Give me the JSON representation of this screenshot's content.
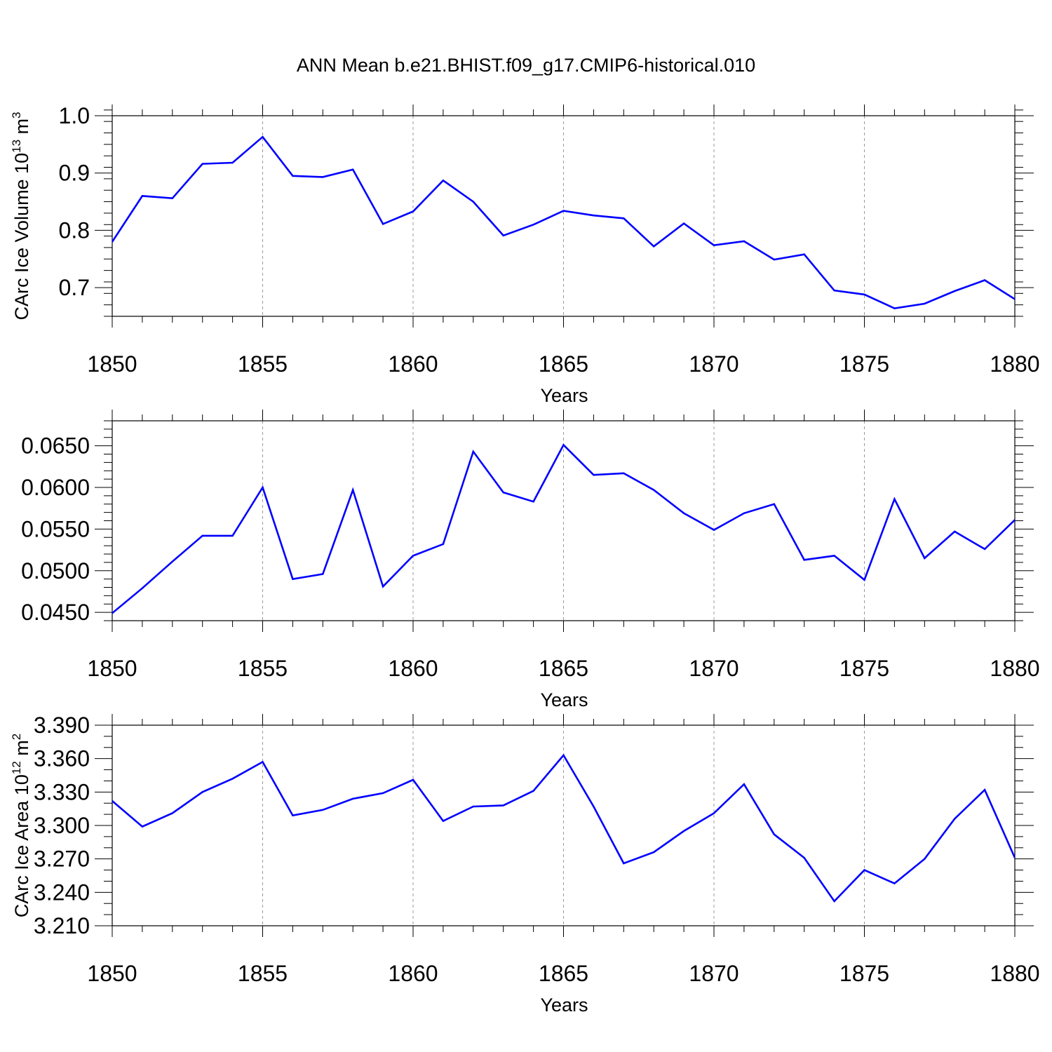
{
  "figure": {
    "title": "ANN Mean b.e21.BHIST.f09_g17.CMIP6-historical.010",
    "line_color": "#0000ff",
    "grid_color": "#999999"
  },
  "chart_data": [
    {
      "type": "line",
      "title": "ANN Mean b.e21.BHIST.f09_g17.CMIP6-historical.010",
      "xlabel": "Years",
      "ylabel": "CArc Ice Volume 10",
      "ylabel_sup": "13",
      "ylabel_unit": " m",
      "ylabel_unit_sup": "3",
      "xlim": [
        1850,
        1880
      ],
      "ylim": [
        0.65,
        1.0
      ],
      "xticks": [
        1850,
        1855,
        1860,
        1865,
        1870,
        1875,
        1880
      ],
      "xtick_labels": [
        "1850",
        "1855",
        "1860",
        "1865",
        "1870",
        "1875",
        "1880"
      ],
      "yticks": [
        0.7,
        0.8,
        0.9,
        1.0
      ],
      "ytick_labels": [
        "0.7",
        "0.8",
        "0.9",
        "1.0"
      ],
      "y_minor_step": 0.02,
      "grid": "x-dashed",
      "x": [
        1850,
        1851,
        1852,
        1853,
        1854,
        1855,
        1856,
        1857,
        1858,
        1859,
        1860,
        1861,
        1862,
        1863,
        1864,
        1865,
        1866,
        1867,
        1868,
        1869,
        1870,
        1871,
        1872,
        1873,
        1874,
        1875,
        1876,
        1877,
        1878,
        1879,
        1880
      ],
      "values": [
        0.78,
        0.86,
        0.856,
        0.916,
        0.918,
        0.963,
        0.895,
        0.893,
        0.906,
        0.811,
        0.833,
        0.887,
        0.85,
        0.791,
        0.81,
        0.834,
        0.826,
        0.821,
        0.772,
        0.812,
        0.774,
        0.781,
        0.749,
        0.758,
        0.695,
        0.688,
        0.664,
        0.672,
        0.694,
        0.713,
        0.68
      ]
    },
    {
      "type": "line",
      "xlabel": "Years",
      "ylabel": "",
      "xlim": [
        1850,
        1880
      ],
      "ylim": [
        0.044,
        0.068
      ],
      "xticks": [
        1850,
        1855,
        1860,
        1865,
        1870,
        1875,
        1880
      ],
      "xtick_labels": [
        "1850",
        "1855",
        "1860",
        "1865",
        "1870",
        "1875",
        "1880"
      ],
      "yticks": [
        0.045,
        0.05,
        0.055,
        0.06,
        0.065
      ],
      "ytick_labels": [
        "0.0450",
        "0.0500",
        "0.0550",
        "0.0600",
        "0.0650"
      ],
      "y_minor_step": 0.001,
      "grid": "x-dashed",
      "x": [
        1850,
        1851,
        1852,
        1853,
        1854,
        1855,
        1856,
        1857,
        1858,
        1859,
        1860,
        1861,
        1862,
        1863,
        1864,
        1865,
        1866,
        1867,
        1868,
        1869,
        1870,
        1871,
        1872,
        1873,
        1874,
        1875,
        1876,
        1877,
        1878,
        1879,
        1880
      ],
      "values": [
        0.0449,
        0.0479,
        0.0511,
        0.0542,
        0.0542,
        0.06,
        0.049,
        0.0496,
        0.0597,
        0.0481,
        0.0518,
        0.0532,
        0.0643,
        0.0594,
        0.0583,
        0.0651,
        0.0615,
        0.0617,
        0.0597,
        0.0569,
        0.0549,
        0.0569,
        0.058,
        0.0513,
        0.0518,
        0.0489,
        0.0586,
        0.0515,
        0.0547,
        0.0526,
        0.0561
      ]
    },
    {
      "type": "line",
      "xlabel": "Years",
      "ylabel": "CArc Ice Area 10",
      "ylabel_sup": "12",
      "ylabel_unit": " m",
      "ylabel_unit_sup": "2",
      "xlim": [
        1850,
        1880
      ],
      "ylim": [
        3.21,
        3.39
      ],
      "xticks": [
        1850,
        1855,
        1860,
        1865,
        1870,
        1875,
        1880
      ],
      "xtick_labels": [
        "1850",
        "1855",
        "1860",
        "1865",
        "1870",
        "1875",
        "1880"
      ],
      "yticks": [
        3.21,
        3.24,
        3.27,
        3.3,
        3.33,
        3.36,
        3.39
      ],
      "ytick_labels": [
        "3.210",
        "3.240",
        "3.270",
        "3.300",
        "3.330",
        "3.360",
        "3.390"
      ],
      "y_minor_step": 0.01,
      "grid": "x-dashed",
      "x": [
        1850,
        1851,
        1852,
        1853,
        1854,
        1855,
        1856,
        1857,
        1858,
        1859,
        1860,
        1861,
        1862,
        1863,
        1864,
        1865,
        1866,
        1867,
        1868,
        1869,
        1870,
        1871,
        1872,
        1873,
        1874,
        1875,
        1876,
        1877,
        1878,
        1879,
        1880
      ],
      "values": [
        3.322,
        3.299,
        3.311,
        3.33,
        3.342,
        3.357,
        3.309,
        3.314,
        3.324,
        3.329,
        3.341,
        3.304,
        3.317,
        3.318,
        3.331,
        3.363,
        3.317,
        3.266,
        3.276,
        3.295,
        3.311,
        3.337,
        3.292,
        3.271,
        3.232,
        3.26,
        3.248,
        3.27,
        3.306,
        3.332,
        3.271
      ]
    }
  ]
}
